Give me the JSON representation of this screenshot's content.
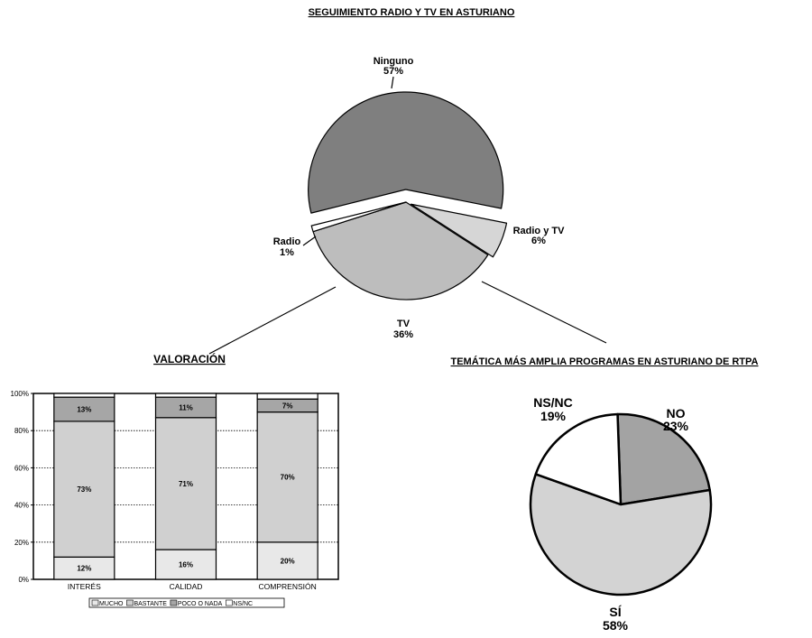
{
  "chart_data": [
    {
      "type": "pie",
      "title": "SEGUIMIENTO RADIO Y TV EN ASTURIANO",
      "slices": [
        {
          "label": "Ninguno",
          "value": 57,
          "pct_label": "57%",
          "color": "#7f7f7f"
        },
        {
          "label": "Radio y TV",
          "value": 6,
          "pct_label": "6%",
          "color": "#d6d6d6"
        },
        {
          "label": "TV",
          "value": 36,
          "pct_label": "36%",
          "color": "#bdbdbd"
        },
        {
          "label": "Radio",
          "value": 1,
          "pct_label": "1%",
          "color": "#ffffff"
        }
      ]
    },
    {
      "type": "bar",
      "stacked": true,
      "title": "VALORACIÓN",
      "categories": [
        "INTERÉS",
        "CALIDAD",
        "COMPRENSIÓN"
      ],
      "ylim": [
        0,
        100
      ],
      "yticks": [
        "0%",
        "20%",
        "40%",
        "60%",
        "80%",
        "100%"
      ],
      "grid": true,
      "legend_position": "bottom",
      "series": [
        {
          "name": "MUCHO",
          "values": [
            12,
            16,
            20
          ],
          "labels": [
            "12%",
            "16%",
            "20%"
          ],
          "color": "#e8e8e8"
        },
        {
          "name": "BASTANTE",
          "values": [
            73,
            71,
            70
          ],
          "labels": [
            "73%",
            "71%",
            "70%"
          ],
          "color": "#d0d0d0"
        },
        {
          "name": "POCO O NADA",
          "values": [
            13,
            11,
            7
          ],
          "labels": [
            "13%",
            "11%",
            "7%"
          ],
          "color": "#a6a6a6"
        },
        {
          "name": "NS/NC",
          "values": [
            2,
            2,
            3
          ],
          "labels": [
            "",
            "",
            ""
          ],
          "color": "#ffffff"
        }
      ]
    },
    {
      "type": "pie",
      "title": "TEMÁTICA MÁS AMPLIA PROGRAMAS EN ASTURIANO DE RTPA",
      "slices": [
        {
          "label": "NO",
          "value": 23,
          "pct_label": "23%",
          "color": "#a3a3a3"
        },
        {
          "label": "SÍ",
          "value": 58,
          "pct_label": "58%",
          "color": "#d3d3d3"
        },
        {
          "label": "NS/NC",
          "value": 19,
          "pct_label": "19%",
          "color": "#ffffff"
        }
      ]
    }
  ]
}
